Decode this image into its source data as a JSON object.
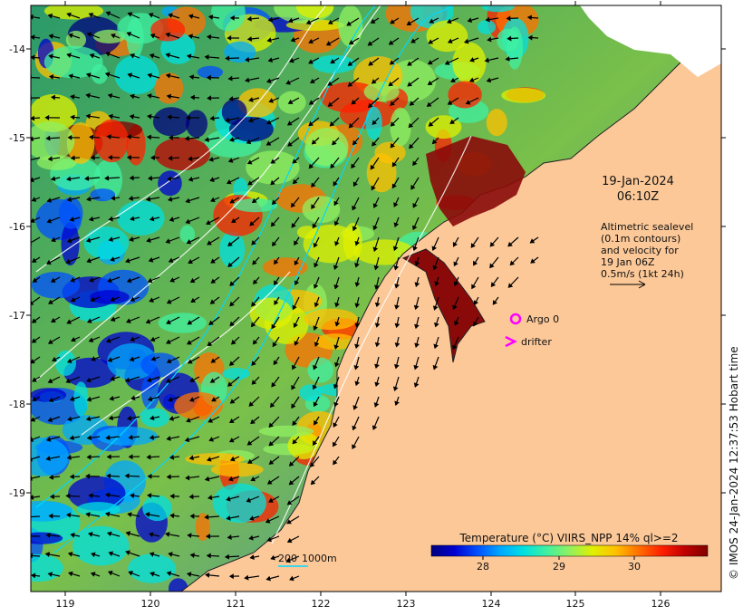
{
  "map": {
    "date": "19-Jan-2024",
    "time": "06:10Z",
    "sealevel_note": [
      "Altimetric sealevel",
      "(0.1m contours)",
      "and velocity for",
      "19 Jan 06Z",
      "0.5m/s (1kt 24h)"
    ],
    "legend_argo": "Argo 0",
    "legend_drifter": "drifter",
    "depth_labels": [
      "200",
      "1000m"
    ],
    "colorbar": {
      "title": "Temperature (°C) VIIRS_NPP 14% ql>=2",
      "ticks": [
        "28",
        "29",
        "30"
      ],
      "colors": [
        "#00007f",
        "#0000d0",
        "#0050ff",
        "#00a8ff",
        "#00e0e0",
        "#40f0a0",
        "#90f060",
        "#e0f000",
        "#ffc000",
        "#ff7000",
        "#ff2000",
        "#c00000",
        "#7f0000"
      ]
    },
    "x_ticks": [
      "119",
      "120",
      "121",
      "122",
      "123",
      "124",
      "125",
      "126"
    ],
    "y_ticks": [
      "-14",
      "-15",
      "-16",
      "-17",
      "-18",
      "-19"
    ],
    "credit": "©  IMOS 24-Jan-2024 12:37:53 Hobart time",
    "colors": {
      "land": "#fcc898",
      "accent_marker": "#ff00ff",
      "contour": "#ffffff",
      "isobath": "#00d8ff"
    }
  }
}
